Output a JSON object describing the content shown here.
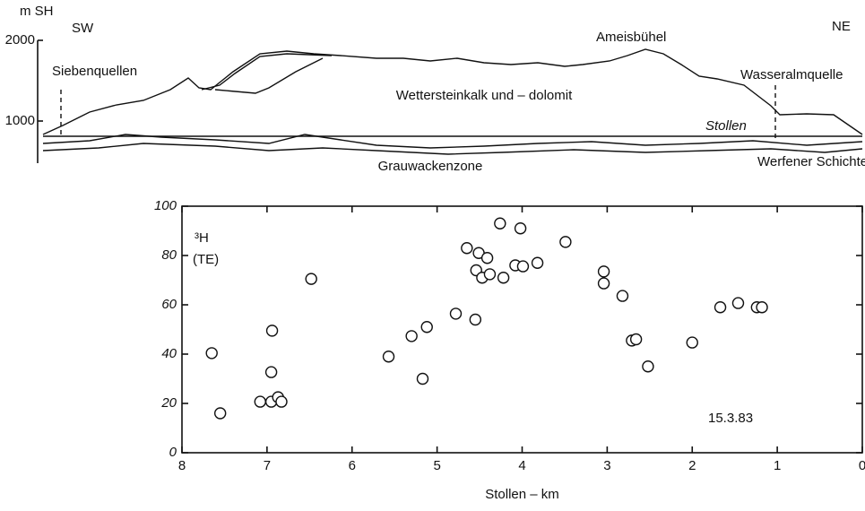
{
  "section": {
    "ylabel": "m SH",
    "yticks": [
      2000,
      1000
    ],
    "sw": "SW",
    "ne": "NE",
    "left_spring": "Siebenquellen",
    "peak": "Ameisbühel",
    "right_spring": "Wasseralmquelle",
    "rock": "Wettersteinkalk und – dolomit",
    "tunnel": "Stollen",
    "lower_zone": "Grauwackenzone",
    "right_zone": "Werfener Schichten"
  },
  "chart_data": {
    "type": "scatter",
    "xlabel": "Stollen – km",
    "ylabel": "³H",
    "ylabel_unit": "(TE)",
    "annotation": "15.3.83",
    "x": [
      7.65,
      7.55,
      7.08,
      6.95,
      6.87,
      6.83,
      6.95,
      6.94,
      6.48,
      5.57,
      5.3,
      5.12,
      5.17,
      4.78,
      4.55,
      4.65,
      4.51,
      4.54,
      4.47,
      4.41,
      4.38,
      4.26,
      4.22,
      4.08,
      4.02,
      3.99,
      3.82,
      3.49,
      3.04,
      3.04,
      2.82,
      2.71,
      2.66,
      2.52,
      2.0,
      1.67,
      1.46,
      1.24,
      1.18
    ],
    "values": [
      40.4,
      16,
      20.7,
      20.7,
      22.5,
      20.7,
      32.7,
      49.5,
      70.5,
      39,
      47.3,
      51,
      30,
      56.4,
      54,
      83,
      81,
      74,
      71,
      79,
      72.4,
      93,
      71,
      76,
      91,
      75.6,
      77,
      85.5,
      73.5,
      68.7,
      63.6,
      45.5,
      46,
      35,
      44.7,
      59,
      60.7,
      59,
      59
    ],
    "xlim": [
      8,
      0
    ],
    "ylim": [
      0,
      100
    ],
    "xticks": [
      8,
      7,
      6,
      5,
      4,
      3,
      2,
      1,
      0
    ],
    "yticks": [
      0,
      20,
      40,
      60,
      80,
      100
    ]
  }
}
